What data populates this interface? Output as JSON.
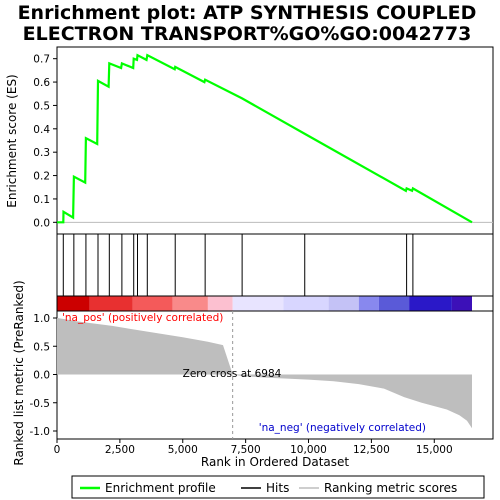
{
  "chart_data": {
    "type": "line",
    "title_lines": [
      "Enrichment plot: ATP SYNTHESIS COUPLED",
      "ELECTRON TRANSPORT%GO%GO:0042773"
    ],
    "xlabel": "Rank in Ordered Dataset",
    "xlim": [
      0,
      16500
    ],
    "x_ticks": [
      0,
      2500,
      5000,
      7500,
      10000,
      12500,
      15000
    ],
    "x_tick_labels": [
      "0",
      "2,500",
      "5,000",
      "7,500",
      "10,000",
      "12,500",
      "15,000"
    ],
    "panels": {
      "enrichment": {
        "ylabel": "Enrichment score (ES)",
        "ylim": [
          -0.05,
          0.75
        ],
        "y_ticks": [
          0.0,
          0.1,
          0.2,
          0.3,
          0.4,
          0.5,
          0.6,
          0.7
        ],
        "y_tick_labels": [
          "0.0",
          "0.1",
          "0.2",
          "0.3",
          "0.4",
          "0.5",
          "0.6",
          "0.7"
        ],
        "color": "#00ff00",
        "series": [
          {
            "name": "Enrichment profile",
            "points": [
              [
                0,
                0.0
              ],
              [
                250,
                0.0
              ],
              [
                260,
                0.045
              ],
              [
                640,
                0.02
              ],
              [
                670,
                0.195
              ],
              [
                1120,
                0.17
              ],
              [
                1150,
                0.36
              ],
              [
                1600,
                0.335
              ],
              [
                1630,
                0.605
              ],
              [
                2050,
                0.58
              ],
              [
                2080,
                0.68
              ],
              [
                2550,
                0.66
              ],
              [
                2580,
                0.68
              ],
              [
                3030,
                0.66
              ],
              [
                3050,
                0.7
              ],
              [
                3180,
                0.695
              ],
              [
                3200,
                0.715
              ],
              [
                3560,
                0.695
              ],
              [
                3590,
                0.715
              ],
              [
                4680,
                0.655
              ],
              [
                4700,
                0.665
              ],
              [
                5860,
                0.6
              ],
              [
                5890,
                0.61
              ],
              [
                7360,
                0.53
              ],
              [
                9830,
                0.38
              ],
              [
                13870,
                0.135
              ],
              [
                13900,
                0.145
              ],
              [
                14120,
                0.135
              ],
              [
                14150,
                0.145
              ],
              [
                16500,
                0.0
              ]
            ]
          }
        ]
      },
      "hits": {
        "series_name": "Hits",
        "positions": [
          250,
          670,
          1150,
          1630,
          2080,
          2580,
          3050,
          3200,
          3590,
          4700,
          5890,
          7360,
          9850,
          13900,
          14150
        ]
      },
      "ranking": {
        "ylabel": "Ranked list metric (PreRanked)",
        "ylim": [
          -1.0,
          1.0
        ],
        "y_ticks": [
          1.0,
          0.5,
          0.0,
          -0.5,
          -1.0
        ],
        "y_tick_labels": [
          "1.0",
          "0.5",
          "0.0",
          "-0.5",
          "-1.0"
        ],
        "series_name": "Ranking metric scores",
        "profile": [
          [
            0,
            1.0
          ],
          [
            300,
            0.98
          ],
          [
            800,
            0.94
          ],
          [
            1500,
            0.9
          ],
          [
            2200,
            0.86
          ],
          [
            3000,
            0.8
          ],
          [
            4000,
            0.73
          ],
          [
            5000,
            0.66
          ],
          [
            6000,
            0.58
          ],
          [
            6600,
            0.52
          ],
          [
            6984,
            0.0
          ],
          [
            7400,
            -0.03
          ],
          [
            8500,
            -0.06
          ],
          [
            10000,
            -0.09
          ],
          [
            11000,
            -0.12
          ],
          [
            12000,
            -0.17
          ],
          [
            13000,
            -0.25
          ],
          [
            13800,
            -0.4
          ],
          [
            14500,
            -0.5
          ],
          [
            15500,
            -0.62
          ],
          [
            16000,
            -0.72
          ],
          [
            16300,
            -0.82
          ],
          [
            16500,
            -0.95
          ]
        ],
        "zero_cross_rank": 6984,
        "annotations": {
          "zero_cross": "Zero cross at 6984",
          "pos_label": "'na_pos' (positively correlated)",
          "neg_label": "'na_neg' (negatively correlated)"
        },
        "colors": {
          "pos_text": "#ff0000",
          "neg_text": "#0000cc",
          "bar_fill": "#bebebe",
          "zero_cross_line": "#999999"
        }
      }
    },
    "color_strip": {
      "stops": [
        [
          0,
          "#cc0000"
        ],
        [
          1300,
          "#e83030"
        ],
        [
          3000,
          "#f45a5a"
        ],
        [
          4600,
          "#f98a8a"
        ],
        [
          6000,
          "#fcc0d0"
        ],
        [
          6984,
          "#e8e4ff"
        ],
        [
          9000,
          "#d8d6ff"
        ],
        [
          10800,
          "#c4c2f6"
        ],
        [
          12000,
          "#8888ee"
        ],
        [
          12800,
          "#5a5ad8"
        ],
        [
          14000,
          "#2a18c8"
        ],
        [
          15700,
          "#3c10b8"
        ],
        [
          16500,
          "#3c10b8"
        ]
      ]
    },
    "legend": {
      "items": [
        {
          "label": "Enrichment profile",
          "color": "#00ff00",
          "kind": "line"
        },
        {
          "label": "Hits",
          "color": "#000000",
          "kind": "line"
        },
        {
          "label": "Ranking metric scores",
          "color": "#bebebe",
          "kind": "line"
        }
      ],
      "placement": "bottom"
    }
  }
}
